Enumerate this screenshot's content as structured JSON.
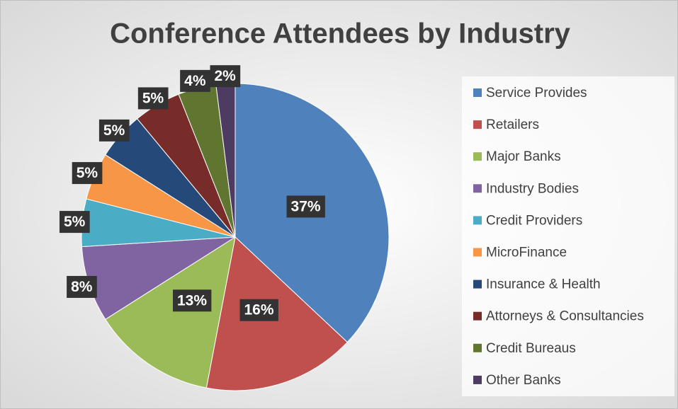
{
  "chart_data": {
    "type": "pie",
    "title": "Conference Attendees by Industry",
    "categories": [
      "Service Provides",
      "Retailers",
      "Major Banks",
      "Industry Bodies",
      "Credit Providers",
      "MicroFinance",
      "Insurance & Health",
      "Attorneys & Consultancies",
      "Credit Bureaus",
      "Other Banks"
    ],
    "values": [
      37,
      16,
      13,
      8,
      5,
      5,
      5,
      5,
      4,
      2
    ],
    "value_labels": [
      "37%",
      "16%",
      "13%",
      "8%",
      "5%",
      "5%",
      "5%",
      "5%",
      "4%",
      "2%"
    ],
    "colors": [
      "#4f81bd",
      "#c0504d",
      "#9bbb59",
      "#8064a2",
      "#4bacc6",
      "#f79646",
      "#254a7a",
      "#772c2a",
      "#5f7530",
      "#4d3b62"
    ],
    "legend": "right"
  }
}
